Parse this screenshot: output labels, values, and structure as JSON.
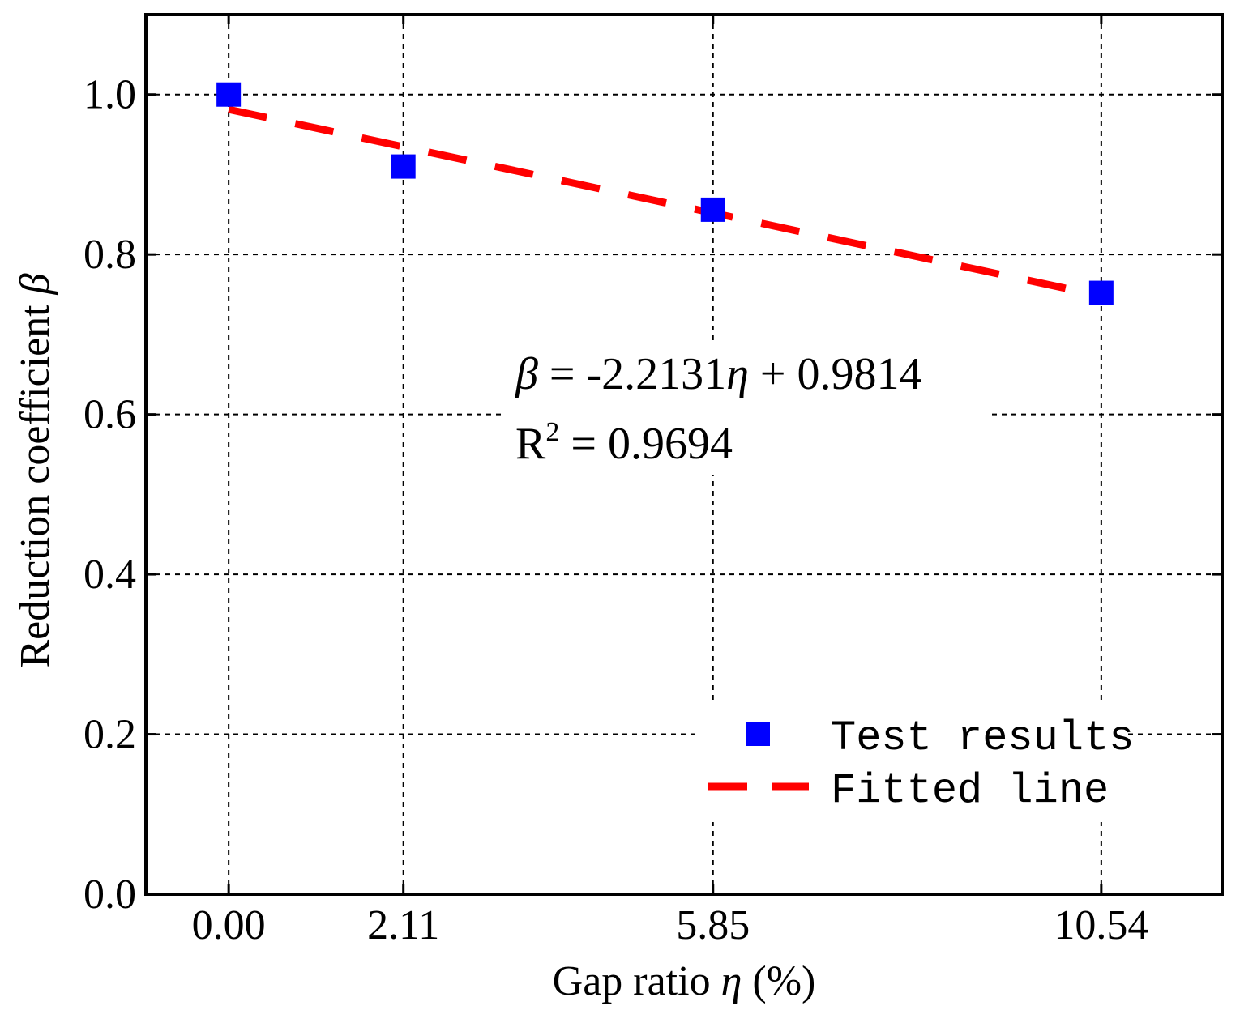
{
  "chart_data": {
    "type": "scatter",
    "x_type": "categorical",
    "categories": [
      "0.00",
      "2.11",
      "5.85",
      "10.54"
    ],
    "xlim": [
      -1.0,
      12.0
    ],
    "ylim": [
      0.0,
      1.1
    ],
    "yticks": [
      "0.0",
      "0.2",
      "0.4",
      "0.6",
      "0.8",
      "1.0"
    ],
    "xlabel_parts": [
      "Gap ratio ",
      "η",
      " (%)"
    ],
    "ylabel_parts": [
      "Reduction coefficient ",
      "β"
    ],
    "series": [
      {
        "name": "Test results",
        "kind": "marker",
        "marker": "square",
        "color": "#0000ff",
        "x": [
          0.0,
          2.11,
          5.85,
          10.54
        ],
        "y": [
          1.0,
          0.91,
          0.856,
          0.752
        ]
      },
      {
        "name": "Fitted line",
        "kind": "line",
        "style": "dashed",
        "color": "#ff0000",
        "equation": {
          "slope": -2.2131,
          "intercept": 0.9814,
          "x_unit": "percent"
        },
        "x_range": [
          0.0,
          10.54
        ]
      }
    ],
    "annotations": {
      "equation_parts": [
        "β",
        " = -2.2131",
        "η",
        " + 0.9814"
      ],
      "r2_parts": [
        "R",
        "2",
        " = 0.9694"
      ]
    },
    "legend": {
      "position": "lower-right"
    },
    "grid": true
  }
}
